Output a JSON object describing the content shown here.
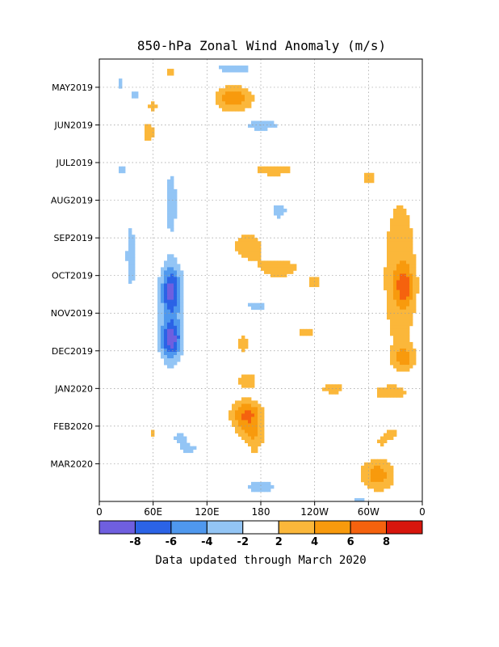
{
  "chart_data": {
    "type": "heatmap",
    "title": "850-hPa Zonal Wind Anomaly (m/s)",
    "footer": "Data updated through March 2020",
    "xlabel": "",
    "ylabel": "",
    "x_ticks": [
      "0",
      "60E",
      "120E",
      "180",
      "120W",
      "60W",
      "0"
    ],
    "x_tick_values": [
      0,
      60,
      120,
      180,
      240,
      300,
      360
    ],
    "y_ticks": [
      "MAY2019",
      "JUN2019",
      "JUL2019",
      "AUG2019",
      "SEP2019",
      "OCT2019",
      "NOV2019",
      "DEC2019",
      "JAN2020",
      "FEB2020",
      "MAR2020"
    ],
    "y_tick_values": [
      1,
      2,
      3,
      4,
      5,
      6,
      7,
      8,
      9,
      10,
      11
    ],
    "xlim": [
      0,
      360
    ],
    "ylim": [
      0.25,
      12.0
    ],
    "grid": true,
    "colorbar": {
      "bounds": [
        -10,
        -8,
        -6,
        -4,
        -2,
        2,
        4,
        6,
        8,
        10
      ],
      "tick_labels": [
        "-8",
        "-6",
        "-4",
        "-2",
        "2",
        "4",
        "6",
        "8"
      ],
      "colors": [
        "#6f5fdf",
        "#2b63e6",
        "#4f98ee",
        "#93c5f5",
        "#ffffff",
        "#fbb73a",
        "#f89a0d",
        "#f5620e",
        "#d7160d"
      ]
    },
    "anomaly_regions": [
      {
        "lon": 150,
        "month": 1.3,
        "value": 5.5,
        "rx": 22,
        "ry": 0.35
      },
      {
        "lon": 80,
        "month": 0.6,
        "value": 3,
        "rx": 8,
        "ry": 0.15
      },
      {
        "lon": 60,
        "month": 1.5,
        "value": 3,
        "rx": 8,
        "ry": 0.15
      },
      {
        "lon": 55,
        "month": 2.2,
        "value": 3,
        "rx": 8,
        "ry": 0.35
      },
      {
        "lon": 195,
        "month": 3.2,
        "value": 3,
        "rx": 30,
        "ry": 0.2
      },
      {
        "lon": 300,
        "month": 3.4,
        "value": 3,
        "rx": 8,
        "ry": 0.2
      },
      {
        "lon": 165,
        "month": 5.2,
        "value": 3.5,
        "rx": 18,
        "ry": 0.4
      },
      {
        "lon": 200,
        "month": 5.8,
        "value": 3,
        "rx": 30,
        "ry": 0.35
      },
      {
        "lon": 240,
        "month": 6.2,
        "value": 3,
        "rx": 10,
        "ry": 0.2
      },
      {
        "lon": 335,
        "month": 6.0,
        "value": 3.5,
        "rx": 22,
        "ry": 2.5
      },
      {
        "lon": 340,
        "month": 6.3,
        "value": 4.5,
        "rx": 10,
        "ry": 0.5
      },
      {
        "lon": 160,
        "month": 7.8,
        "value": 3,
        "rx": 10,
        "ry": 0.3
      },
      {
        "lon": 230,
        "month": 7.5,
        "value": 3,
        "rx": 14,
        "ry": 0.15
      },
      {
        "lon": 340,
        "month": 8.2,
        "value": 4,
        "rx": 12,
        "ry": 0.3
      },
      {
        "lon": 165,
        "month": 8.8,
        "value": 3.5,
        "rx": 12,
        "ry": 0.25
      },
      {
        "lon": 260,
        "month": 9.0,
        "value": 3,
        "rx": 16,
        "ry": 0.2
      },
      {
        "lon": 322,
        "month": 9.1,
        "value": 3,
        "rx": 20,
        "ry": 0.2
      },
      {
        "lon": 165,
        "month": 9.7,
        "value": 6.5,
        "rx": 18,
        "ry": 0.4
      },
      {
        "lon": 170,
        "month": 10.4,
        "value": 4.5,
        "rx": 16,
        "ry": 0.4
      },
      {
        "lon": 60,
        "month": 10.2,
        "value": 3,
        "rx": 5,
        "ry": 0.15
      },
      {
        "lon": 325,
        "month": 10.2,
        "value": 3,
        "rx": 10,
        "ry": 0.15
      },
      {
        "lon": 315,
        "month": 10.4,
        "value": 2.5,
        "rx": 8,
        "ry": 0.15
      },
      {
        "lon": 310,
        "month": 11.3,
        "value": 5,
        "rx": 20,
        "ry": 0.45
      },
      {
        "lon": 80,
        "month": 4.0,
        "value": -3,
        "rx": 8,
        "ry": 1.0
      },
      {
        "lon": 80,
        "month": 6.4,
        "value": -6.5,
        "rx": 11,
        "ry": 0.6
      },
      {
        "lon": 80,
        "month": 7.7,
        "value": -7,
        "rx": 11,
        "ry": 0.45
      },
      {
        "lon": 80,
        "month": 7.1,
        "value": -3,
        "rx": 15,
        "ry": 1.7
      },
      {
        "lon": 35,
        "month": 5.5,
        "value": -3,
        "rx": 7,
        "ry": 1.2
      },
      {
        "lon": 23,
        "month": 0.9,
        "value": -2.5,
        "rx": 6,
        "ry": 0.2
      },
      {
        "lon": 40,
        "month": 1.2,
        "value": -2.5,
        "rx": 6,
        "ry": 0.3
      },
      {
        "lon": 25,
        "month": 3.2,
        "value": -2.5,
        "rx": 8,
        "ry": 0.2
      },
      {
        "lon": 150,
        "month": 0.5,
        "value": -2.5,
        "rx": 40,
        "ry": 0.2
      },
      {
        "lon": 180,
        "month": 2.0,
        "value": -2.5,
        "rx": 35,
        "ry": 0.25
      },
      {
        "lon": 200,
        "month": 4.3,
        "value": -2.5,
        "rx": 16,
        "ry": 0.3
      },
      {
        "lon": 175,
        "month": 6.8,
        "value": -2.5,
        "rx": 20,
        "ry": 0.2
      },
      {
        "lon": 155,
        "month": 10.5,
        "value": -2.5,
        "rx": 25,
        "ry": 0.2
      },
      {
        "lon": 90,
        "month": 10.3,
        "value": -2.5,
        "rx": 12,
        "ry": 0.2
      },
      {
        "lon": 100,
        "month": 10.6,
        "value": -2.5,
        "rx": 15,
        "ry": 0.15
      },
      {
        "lon": 180,
        "month": 11.6,
        "value": -2.5,
        "rx": 30,
        "ry": 0.3
      },
      {
        "lon": 290,
        "month": 12.0,
        "value": -2.5,
        "rx": 20,
        "ry": 0.2
      }
    ]
  }
}
